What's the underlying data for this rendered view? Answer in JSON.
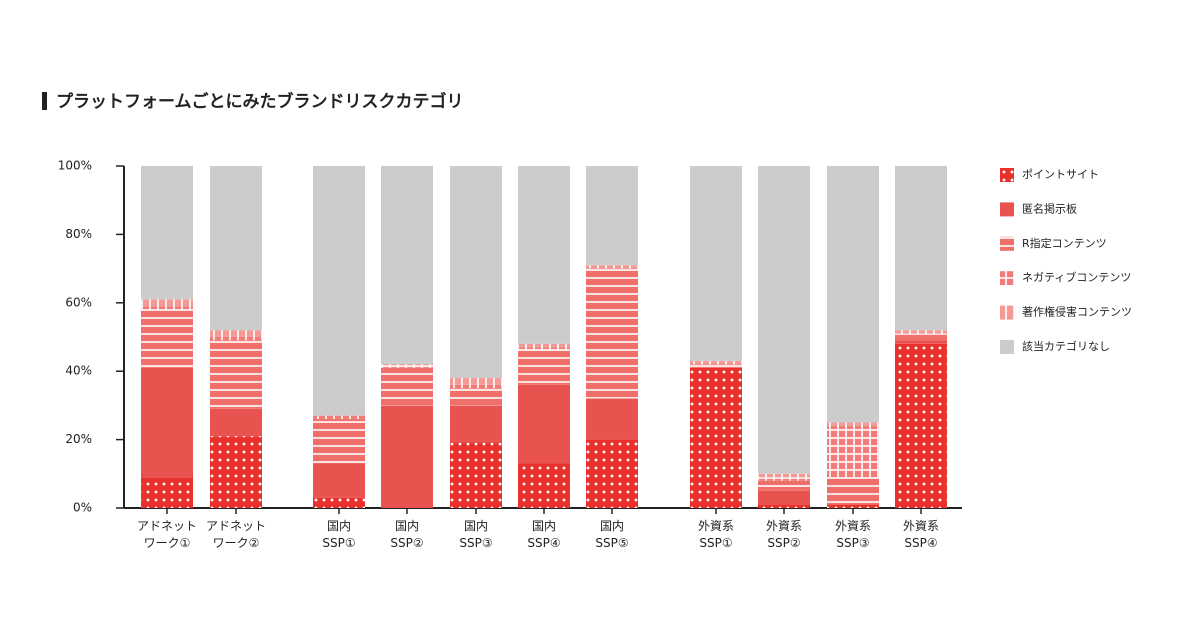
{
  "chart_data": {
    "type": "stacked-bar",
    "title": "プラットフォームごとにみたブランドリスクカテゴリ",
    "categories": [
      [
        "アドネット",
        "ワーク①"
      ],
      [
        "アドネット",
        "ワーク②"
      ],
      [
        "国内",
        "SSP①"
      ],
      [
        "国内",
        "SSP②"
      ],
      [
        "国内",
        "SSP③"
      ],
      [
        "国内",
        "SSP④"
      ],
      [
        "国内",
        "SSP⑤"
      ],
      [
        "外資系",
        "SSP①"
      ],
      [
        "外資系",
        "SSP②"
      ],
      [
        "外資系",
        "SSP③"
      ],
      [
        "外資系",
        "SSP④"
      ]
    ],
    "series": [
      {
        "name": "ポイントサイト",
        "color": "#e8302d",
        "pattern": "dots",
        "values": [
          9,
          21,
          3,
          0,
          19,
          13,
          20,
          41,
          1,
          1,
          48
        ]
      },
      {
        "name": "匿名掲示板",
        "color": "#e9534f",
        "pattern": "solid",
        "values": [
          32,
          8,
          10,
          30,
          11,
          23,
          12,
          0,
          4,
          0,
          1
        ]
      },
      {
        "name": "R指定コンテンツ",
        "color": "#ef6f6b",
        "pattern": "hstripes",
        "values": [
          17,
          20,
          13,
          11,
          5,
          10,
          38,
          1,
          3,
          8,
          2
        ]
      },
      {
        "name": "ネガティブコンテンツ",
        "color": "#ef7c78",
        "pattern": "grid",
        "values": [
          1,
          1,
          1,
          1,
          1,
          1,
          0,
          0,
          1,
          15,
          0
        ]
      },
      {
        "name": "著作権侵害コンテンツ",
        "color": "#f39a97",
        "pattern": "vstripes",
        "values": [
          2,
          2,
          0,
          0,
          2,
          1,
          1,
          1,
          1,
          1,
          1
        ]
      },
      {
        "name": "該当カテゴリなし",
        "color": "#cccccc",
        "pattern": "solid",
        "values": [
          39,
          48,
          73,
          58,
          62,
          52,
          29,
          57,
          90,
          75,
          48
        ]
      }
    ],
    "ylim": [
      0,
      100
    ],
    "yticks": [
      {
        "value": 0,
        "label": "0%"
      },
      {
        "value": 20,
        "label": "20%"
      },
      {
        "value": 40,
        "label": "40%"
      },
      {
        "value": 60,
        "label": "60%"
      },
      {
        "value": 80,
        "label": "80%"
      },
      {
        "value": 100,
        "label": "100%"
      }
    ]
  }
}
